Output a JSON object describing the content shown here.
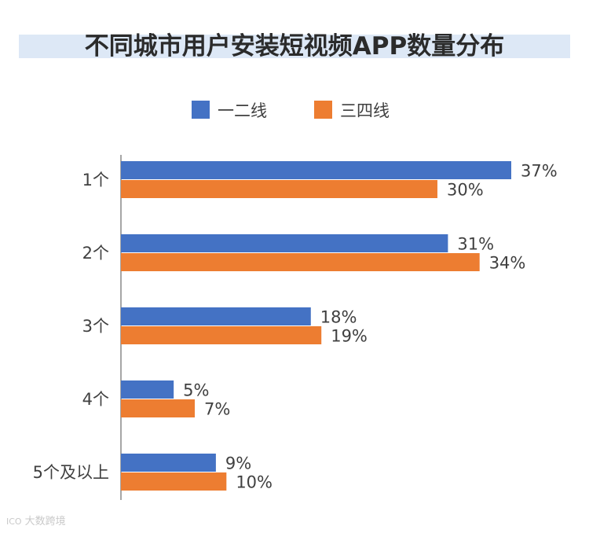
{
  "chart_data": {
    "type": "bar",
    "orientation": "horizontal",
    "title": "不同城市用户安装短视频APP数量分布",
    "categories": [
      "1个",
      "2个",
      "3个",
      "4个",
      "5个及以上"
    ],
    "series": [
      {
        "name": "一二线",
        "values": [
          37,
          31,
          18,
          5,
          9
        ],
        "labels": [
          "37%",
          "31%",
          "18%",
          "5%",
          "9%"
        ]
      },
      {
        "name": "三四线",
        "values": [
          30,
          34,
          19,
          7,
          10
        ],
        "labels": [
          "30%",
          "34%",
          "19%",
          "7%",
          "10%"
        ]
      }
    ],
    "xlim": [
      0,
      37
    ],
    "unit": "%",
    "legend_position": "top",
    "grid": false
  },
  "colors": {
    "series": [
      "#4472c4",
      "#ed7d31"
    ],
    "axis": "#a6a6a6",
    "text": "#404040"
  },
  "watermark": {
    "mark": "ICO",
    "text": "大数跨境"
  }
}
